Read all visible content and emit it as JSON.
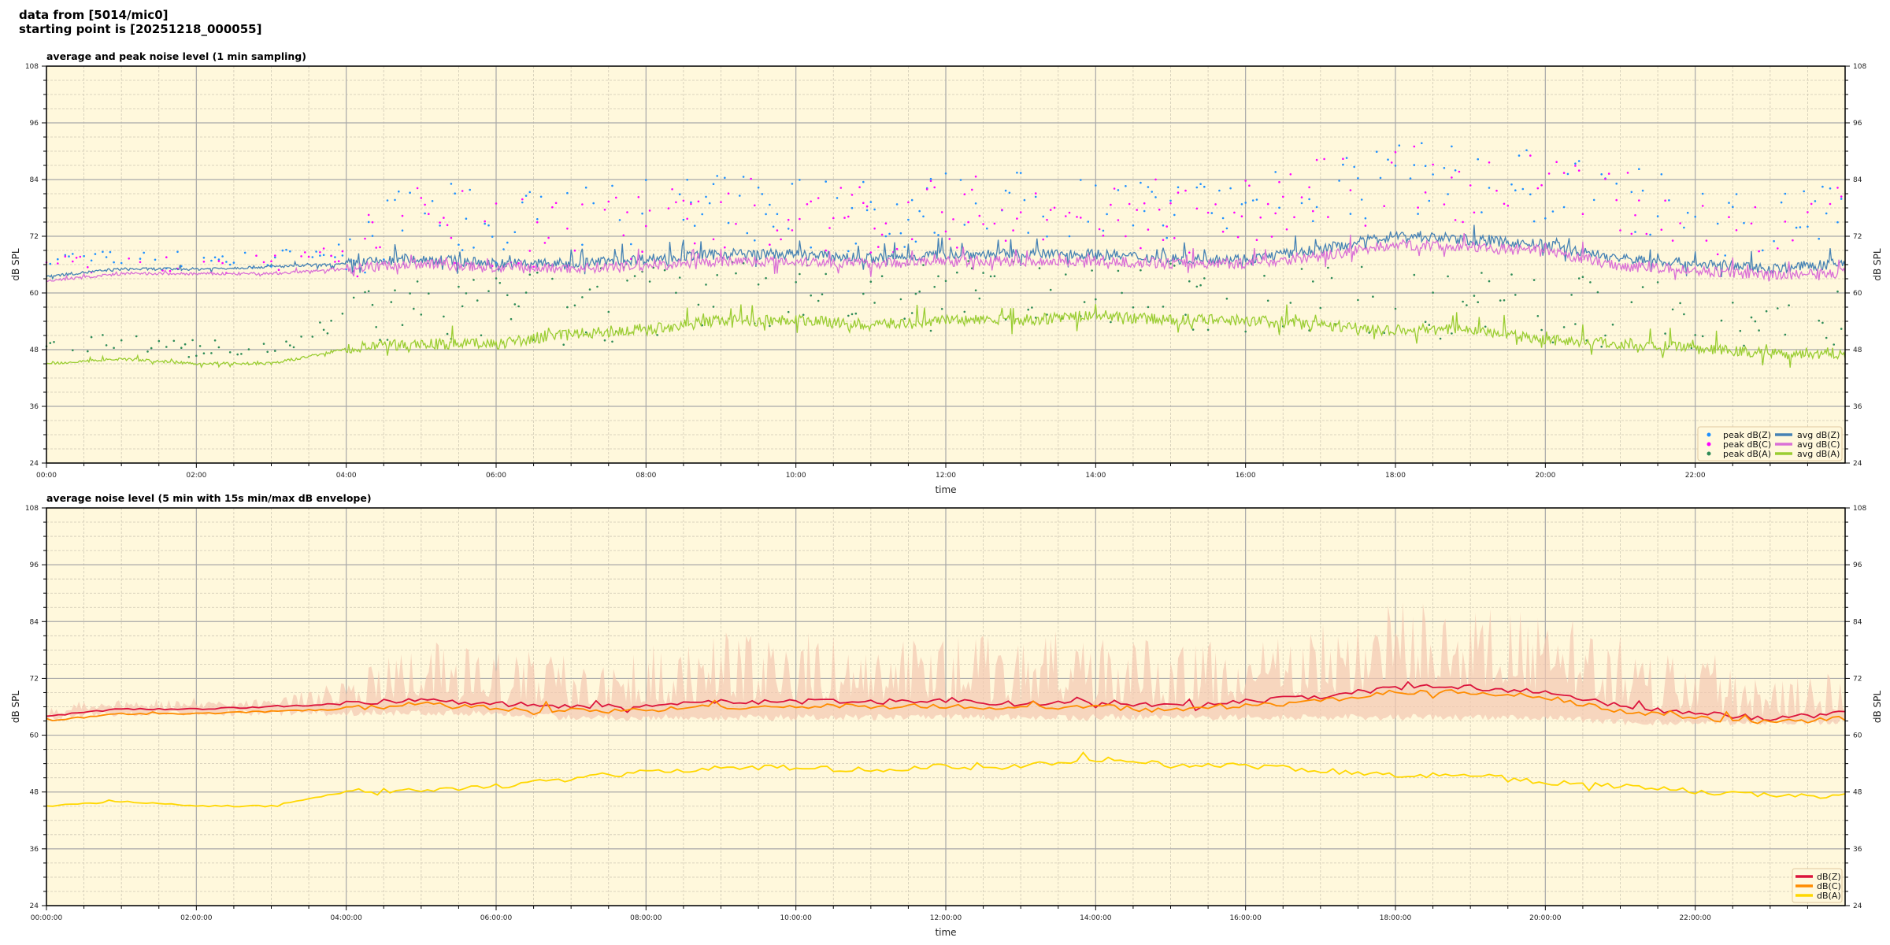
{
  "header": {
    "line1": "data from [5014/mic0]",
    "line2": "starting point is [20251218_000055]"
  },
  "colors": {
    "background": "#fff8dc",
    "avg_z": "#4682b4",
    "avg_c": "#da70d6",
    "avg_a": "#9acd32",
    "peak_z": "#1e90ff",
    "peak_c": "#ff00ff",
    "peak_a": "#2e8b57",
    "dbz": "#dc143c",
    "dbc": "#ff8c00",
    "dba": "#ffd700",
    "envelope": "#f4c7b0"
  },
  "chart_data": [
    {
      "type": "line",
      "title": "average and peak noise level (1 min sampling)",
      "xlabel": "time",
      "ylabel": "dB SPL",
      "xlim_hours": [
        0,
        24
      ],
      "ylim": [
        24,
        108
      ],
      "yticks": [
        24,
        36,
        48,
        60,
        72,
        84,
        96,
        108
      ],
      "xticks": [
        "00:00",
        "02:00",
        "04:00",
        "06:00",
        "08:00",
        "10:00",
        "12:00",
        "14:00",
        "16:00",
        "18:00",
        "20:00",
        "22:00"
      ],
      "grid": true,
      "legend": "bottom-right",
      "x_hours": [
        0,
        1,
        2,
        3,
        4,
        5,
        6,
        7,
        8,
        9,
        10,
        11,
        12,
        13,
        14,
        15,
        16,
        17,
        18,
        19,
        20,
        21,
        22,
        23,
        24
      ],
      "series": [
        {
          "name": "peak dB(Z)",
          "kind": "scatter",
          "color_key": "peak_z",
          "values": [
            67,
            67,
            67,
            67,
            70,
            76,
            74,
            74,
            76,
            77,
            78,
            76,
            78,
            78,
            78,
            77,
            78,
            82,
            84,
            84,
            82,
            79,
            76,
            75,
            76
          ]
        },
        {
          "name": "peak dB(C)",
          "kind": "scatter",
          "color_key": "peak_c",
          "values": [
            66,
            66,
            66,
            66,
            69,
            75,
            73,
            73,
            75,
            76,
            77,
            75,
            77,
            77,
            77,
            76,
            77,
            81,
            83,
            83,
            81,
            78,
            75,
            74,
            75
          ]
        },
        {
          "name": "peak dB(A)",
          "kind": "scatter",
          "color_key": "peak_a",
          "values": [
            48,
            50,
            48,
            48,
            54,
            57,
            57,
            57,
            58,
            60,
            60,
            59,
            60,
            60,
            61,
            59,
            59,
            58,
            58,
            58,
            56,
            55,
            54,
            53,
            53
          ]
        },
        {
          "name": "avg dB(Z)",
          "kind": "line",
          "color_key": "avg_z",
          "values": [
            63.5,
            65,
            65,
            65.5,
            66,
            67,
            66,
            66,
            67,
            68,
            68,
            67,
            68,
            68,
            68,
            67,
            67,
            69,
            72,
            71,
            70,
            67,
            66,
            65,
            66
          ]
        },
        {
          "name": "avg dB(C)",
          "kind": "line",
          "color_key": "avg_c",
          "values": [
            62.5,
            64,
            64,
            64,
            65,
            66,
            65,
            65,
            65.5,
            66.5,
            66.5,
            66,
            66.5,
            66.5,
            66.5,
            66,
            66,
            67.5,
            70,
            69.5,
            68.5,
            65.5,
            64.5,
            63.5,
            64
          ]
        },
        {
          "name": "avg dB(A)",
          "kind": "line",
          "color_key": "avg_a",
          "values": [
            45,
            46,
            45,
            45,
            48,
            49,
            49,
            51,
            52,
            54,
            54,
            53,
            54,
            54,
            55,
            54,
            54,
            53,
            52,
            52,
            50,
            49,
            48,
            47,
            47
          ]
        }
      ]
    },
    {
      "type": "line",
      "title": "average noise level (5 min with 15s min/max dB envelope)",
      "xlabel": "time",
      "ylabel": "dB SPL",
      "xlim_hours": [
        0,
        24
      ],
      "ylim": [
        24,
        108
      ],
      "yticks": [
        24,
        36,
        48,
        60,
        72,
        84,
        96,
        108
      ],
      "xticks": [
        "00:00:00",
        "02:00:00",
        "04:00:00",
        "06:00:00",
        "08:00:00",
        "10:00:00",
        "12:00:00",
        "14:00:00",
        "16:00:00",
        "18:00:00",
        "20:00:00",
        "22:00:00"
      ],
      "grid": true,
      "legend": "bottom-right",
      "x_hours": [
        0,
        1,
        2,
        3,
        4,
        5,
        6,
        7,
        8,
        9,
        10,
        11,
        12,
        13,
        14,
        15,
        16,
        17,
        18,
        19,
        20,
        21,
        22,
        23,
        24
      ],
      "envelope_max": [
        67,
        68,
        68,
        68,
        72,
        80,
        78,
        78,
        80,
        82,
        82,
        80,
        82,
        82,
        82,
        80,
        80,
        84,
        88,
        88,
        86,
        82,
        79,
        77,
        78
      ],
      "envelope_min": [
        63,
        64,
        64,
        64,
        64,
        64,
        64,
        63,
        63,
        63,
        63,
        63,
        63,
        63,
        63,
        63,
        63,
        63,
        63,
        63,
        63,
        62,
        62,
        62,
        62
      ],
      "series": [
        {
          "name": "dB(Z)",
          "color_key": "dbz",
          "values": [
            64,
            65.5,
            65.5,
            66,
            66.5,
            67.5,
            66.5,
            66,
            66,
            67,
            67,
            67,
            67,
            66.5,
            67,
            66,
            67,
            68,
            70,
            70,
            69,
            66,
            64.5,
            63.5,
            64.5
          ]
        },
        {
          "name": "dB(C)",
          "color_key": "dbc",
          "values": [
            63,
            64.5,
            64.5,
            65,
            65.5,
            66.5,
            65.5,
            65,
            65,
            66,
            66,
            66,
            66,
            65.5,
            66,
            65,
            66,
            67,
            69,
            69,
            68,
            65,
            63.5,
            62.5,
            63.5
          ]
        },
        {
          "name": "dB(A)",
          "color_key": "dba",
          "values": [
            45,
            46,
            45,
            45,
            48,
            48.5,
            49,
            51,
            52,
            53,
            53,
            52.5,
            53.5,
            53.5,
            55,
            53.5,
            53.5,
            52.5,
            51.5,
            51.5,
            50,
            49,
            48,
            47,
            47
          ]
        }
      ]
    }
  ]
}
